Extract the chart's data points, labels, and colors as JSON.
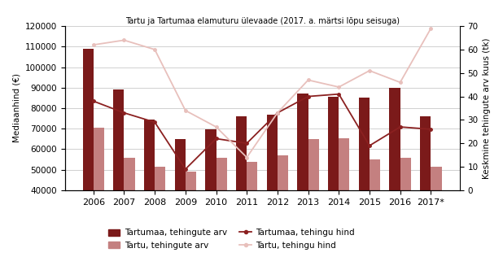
{
  "years": [
    "2006",
    "2007",
    "2008",
    "2009",
    "2010",
    "2011",
    "2012",
    "2013",
    "2014",
    "2015",
    "2016",
    "2017*"
  ],
  "tartumaa_bars": [
    109000,
    89000,
    74500,
    65000,
    69500,
    76000,
    77000,
    87000,
    85500,
    85000,
    90000,
    76000
  ],
  "tartu_bars": [
    70500,
    56000,
    51500,
    49000,
    56000,
    54000,
    57000,
    65000,
    65500,
    55000,
    56000,
    51500
  ],
  "tartumaa_line": [
    38,
    33,
    29,
    9,
    22,
    20,
    33,
    40,
    41,
    19,
    27,
    26
  ],
  "tartu_line": [
    62,
    64,
    60,
    34,
    27,
    14,
    33,
    47,
    44,
    51,
    46,
    69
  ],
  "title": "Tartu ja Tartumaa elamuturu ülevaade (2017. a. märtsi lõpu seisuga)",
  "ylabel_left": "Mediaanhind (€)",
  "ylabel_right": "Keskmine tehingute arv kuus (tk)",
  "ylim_left": [
    40000,
    120000
  ],
  "ylim_right": [
    0,
    70
  ],
  "yticks_left": [
    40000,
    50000,
    60000,
    70000,
    80000,
    90000,
    100000,
    110000,
    120000
  ],
  "yticks_right": [
    0,
    10,
    20,
    30,
    40,
    50,
    60,
    70
  ],
  "bar_width": 0.35,
  "color_tartumaa_bar": "#7B1A1A",
  "color_tartu_bar": "#C48080",
  "color_tartumaa_line": "#8B2020",
  "color_tartu_line": "#E8C0BC",
  "legend_labels": [
    "Tartumaa, tehingute arv",
    "Tartu, tehingute arv",
    "Tartumaa, tehingu hind",
    "Tartu, tehingu hind"
  ],
  "background_color": "#ffffff",
  "grid_color": "#d0d0d0"
}
